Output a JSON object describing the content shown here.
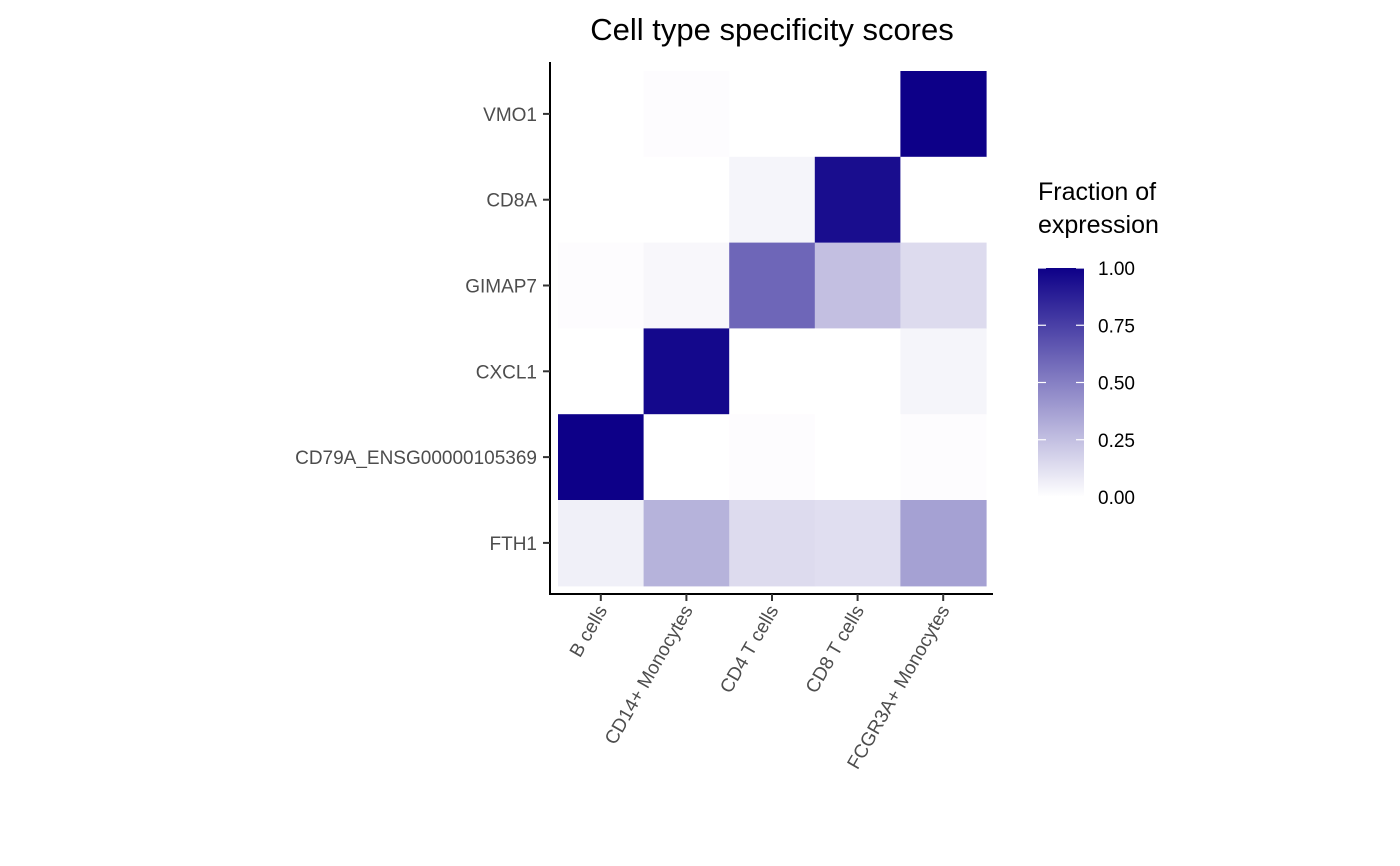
{
  "chart_data": {
    "type": "heatmap",
    "title": "Cell type specificity scores",
    "xlabel": "",
    "ylabel": "",
    "x_categories": [
      "B cells",
      "CD14+ Monocytes",
      "CD4 T cells",
      "CD8 T cells",
      "FCGR3A+ Monocytes"
    ],
    "y_categories": [
      "VMO1",
      "CD8A",
      "GIMAP7",
      "CXCL1",
      "CD79A_ENSG00000105369",
      "FTH1"
    ],
    "values": [
      [
        0.0,
        0.01,
        0.0,
        0.0,
        1.0
      ],
      [
        0.0,
        0.0,
        0.04,
        0.95,
        0.0
      ],
      [
        0.01,
        0.03,
        0.6,
        0.25,
        0.14
      ],
      [
        0.0,
        0.97,
        0.0,
        0.0,
        0.04
      ],
      [
        1.0,
        0.0,
        0.01,
        0.0,
        0.01
      ],
      [
        0.06,
        0.3,
        0.14,
        0.13,
        0.37
      ]
    ],
    "legend": {
      "title_lines": [
        "Fraction of",
        "expression"
      ],
      "tick_values": [
        1.0,
        0.75,
        0.5,
        0.25,
        0.0
      ],
      "tick_labels": [
        "1.00",
        "0.75",
        "0.50",
        "0.25",
        "0.00"
      ],
      "range": [
        0,
        1
      ],
      "placement": "right"
    },
    "color_low": "#ffffff",
    "color_high": "#0d0088",
    "grid": false
  }
}
